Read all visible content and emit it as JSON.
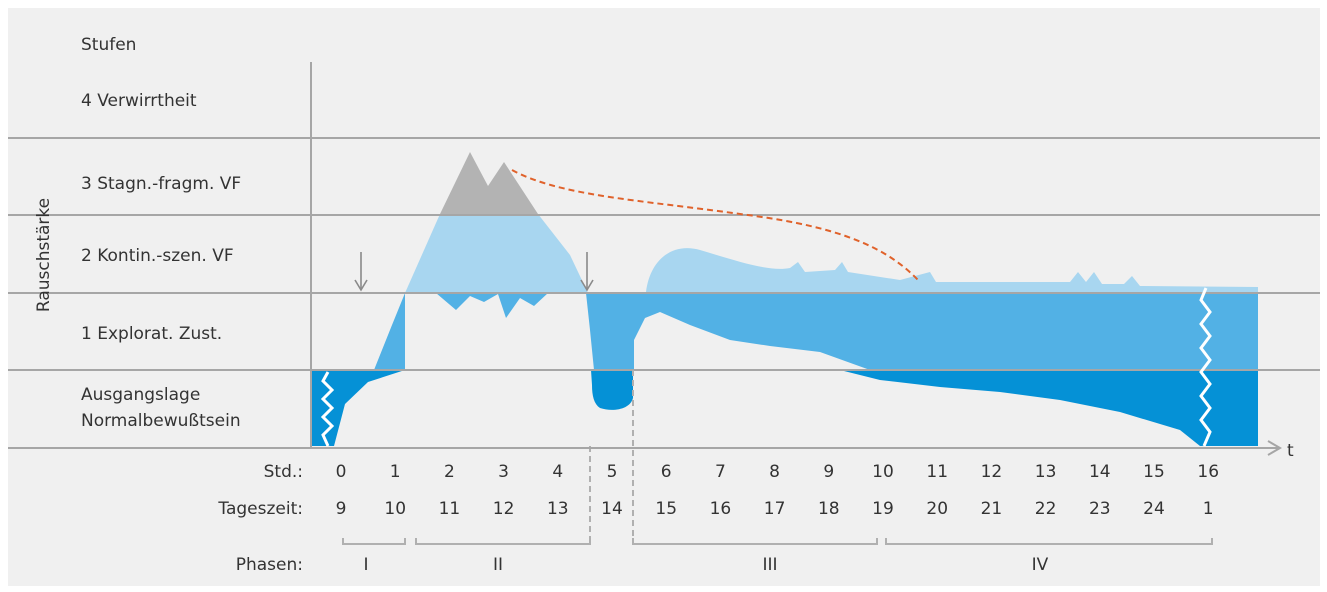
{
  "title": "Stufen",
  "y_axis_label": "Rauschstärke",
  "x_axis_label": "t",
  "levels": [
    {
      "label": "4 Verwirrtheit"
    },
    {
      "label": "3 Stagn.-fragm. VF"
    },
    {
      "label": "2 Kontin.-szen. VF"
    },
    {
      "label": "1 Explorat. Zust."
    },
    {
      "label": "Ausgangslage"
    },
    {
      "label": "Normalbewußtsein"
    }
  ],
  "rows": {
    "std_label": "Std.:",
    "std": [
      "0",
      "1",
      "2",
      "3",
      "4",
      "5",
      "6",
      "7",
      "8",
      "9",
      "10",
      "11",
      "12",
      "13",
      "14",
      "15",
      "16"
    ],
    "tageszeit_label": "Tageszeit:",
    "tageszeit": [
      "9",
      "10",
      "11",
      "12",
      "13",
      "14",
      "15",
      "16",
      "17",
      "18",
      "19",
      "20",
      "21",
      "22",
      "23",
      "24",
      "1"
    ],
    "phasen_label": "Phasen:",
    "phasen": [
      "I",
      "II",
      "III",
      "IV"
    ]
  },
  "colors": {
    "background": "#f0f0f0",
    "gridline": "#a6a6a6",
    "level_dark": "#0591d6",
    "level_mid": "#52b1e5",
    "level_light": "#a8d6f0",
    "peak_gray": "#b3b3b3",
    "dashed_curve": "#e0622b"
  }
}
